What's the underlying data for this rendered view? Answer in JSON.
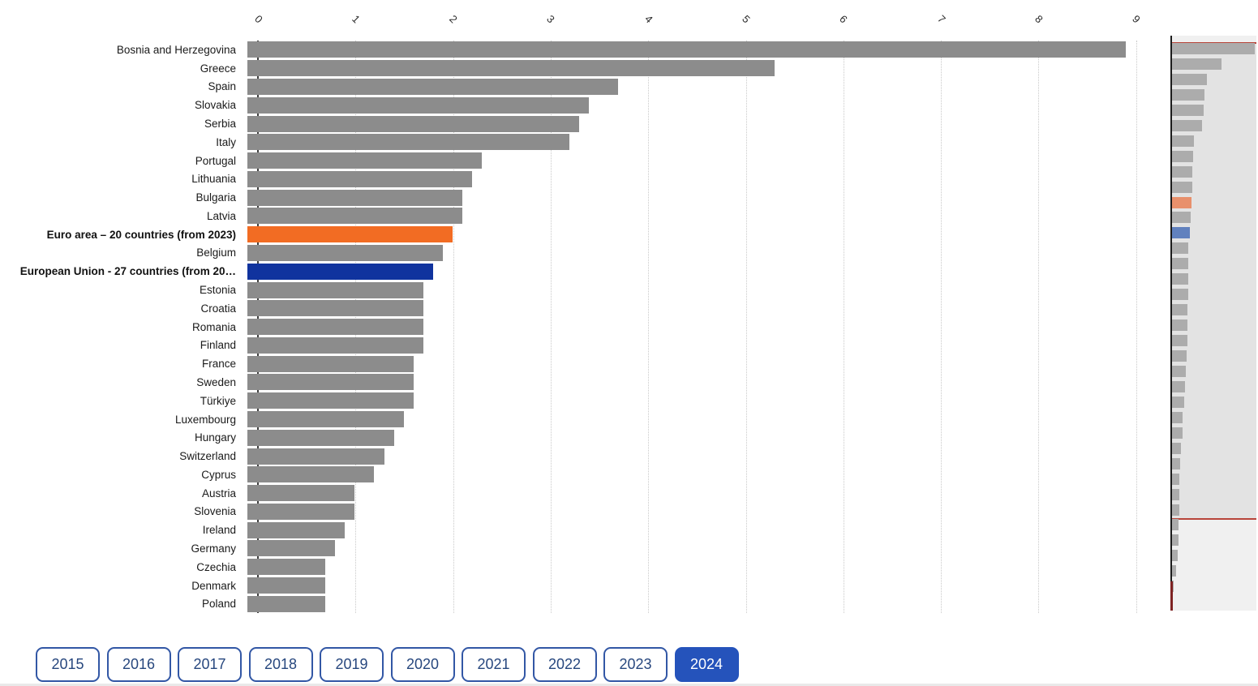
{
  "chart_data": {
    "type": "bar",
    "orientation": "horizontal",
    "title": "",
    "xlabel": "",
    "ylabel": "",
    "xlim": [
      0,
      9
    ],
    "x_ticks": [
      "0",
      "1",
      "2",
      "3",
      "4",
      "5",
      "6",
      "7",
      "8",
      "9"
    ],
    "grid": "dotted-vertical",
    "legend": "none",
    "categories": [
      "Bosnia and Herzegovina",
      "Greece",
      "Spain",
      "Slovakia",
      "Serbia",
      "Italy",
      "Portugal",
      "Lithuania",
      "Bulgaria",
      "Latvia",
      "Euro area – 20 countries (from 2023)",
      "Belgium",
      "European Union - 27 countries (from 20…",
      "Estonia",
      "Croatia",
      "Romania",
      "Finland",
      "France",
      "Sweden",
      "Türkiye",
      "Luxembourg",
      "Hungary",
      "Switzerland",
      "Cyprus",
      "Austria",
      "Slovenia",
      "Ireland",
      "Germany",
      "Czechia",
      "Denmark",
      "Poland"
    ],
    "values": [
      9.0,
      5.4,
      3.8,
      3.5,
      3.4,
      3.3,
      2.4,
      2.3,
      2.2,
      2.2,
      2.1,
      2.0,
      1.9,
      1.8,
      1.8,
      1.8,
      1.8,
      1.7,
      1.7,
      1.7,
      1.6,
      1.5,
      1.4,
      1.3,
      1.1,
      1.1,
      1.0,
      0.9,
      0.8,
      0.8,
      0.8
    ],
    "highlights": [
      {
        "index": 10,
        "label": "Euro area – 20 countries (from 2023)",
        "color": "#F26C23"
      },
      {
        "index": 12,
        "label": "European Union - 27 countries (from 20…",
        "color": "#10339E"
      }
    ],
    "bold_label_indices": [
      10,
      12
    ],
    "default_bar_color": "#8C8C8C",
    "minimap": {
      "visible_rows": 31,
      "extra_values_below_view": [
        0.7,
        0.7,
        0.6,
        0.4,
        0.15,
        0.1
      ],
      "bar_color": "#ACACAC",
      "euro_area_color": "#E8906C",
      "eu_color": "#6181BE",
      "viewport_border_color": "#B8453A",
      "viewport_background": "#E3E3E3",
      "background": "#F0F0F0"
    }
  },
  "year_selector": {
    "options": [
      "2015",
      "2016",
      "2017",
      "2018",
      "2019",
      "2020",
      "2021",
      "2022",
      "2023",
      "2024"
    ],
    "selected": "2024",
    "selected_index": 9,
    "selected_background": "#2553BB",
    "button_border_color": "#3257A5",
    "button_text_color": "#27477E"
  }
}
